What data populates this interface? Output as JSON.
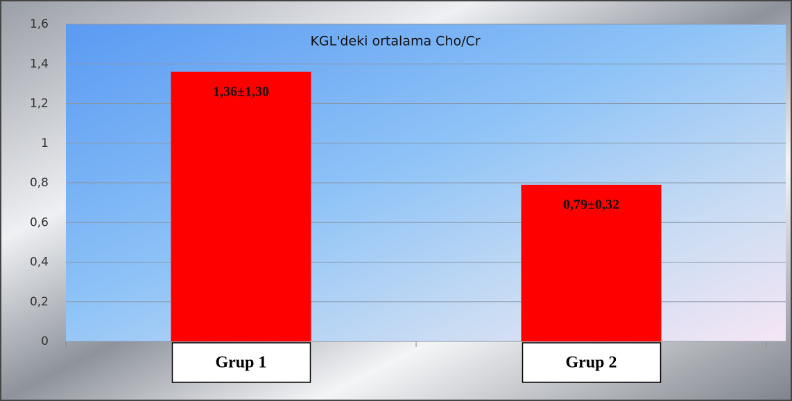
{
  "chart_data": {
    "type": "bar",
    "title": "KGL'deki ortalama Cho/Cr",
    "categories": [
      "Grup 1",
      "Grup 2"
    ],
    "values": [
      1.36,
      0.79
    ],
    "value_labels": [
      "1,36±1,30",
      "0,79±0,32"
    ],
    "color": "#ff0000",
    "ylim": [
      0,
      1.6
    ],
    "yticks": [
      0,
      {
        "value": 0.2,
        "label": "0,2"
      },
      {
        "value": 0.4,
        "label": "0,4"
      },
      {
        "value": 0.6,
        "label": "0,6"
      },
      {
        "value": 0.8,
        "label": "0,8"
      },
      1,
      {
        "value": 1.2,
        "label": "1,2"
      },
      {
        "value": 1.4,
        "label": "1,4"
      },
      {
        "value": 1.6,
        "label": "1,6"
      }
    ],
    "grid": true
  }
}
